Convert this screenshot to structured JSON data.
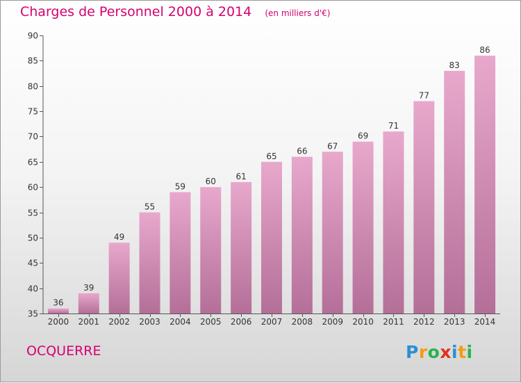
{
  "chart_data": {
    "type": "bar",
    "title": "Charges de Personnel 2000 à 2014",
    "subtitle": "(en milliers d'€)",
    "categories": [
      "2000",
      "2001",
      "2002",
      "2003",
      "2004",
      "2005",
      "2006",
      "2007",
      "2008",
      "2009",
      "2010",
      "2011",
      "2012",
      "2013",
      "2014"
    ],
    "values": [
      36,
      39,
      49,
      55,
      59,
      60,
      61,
      65,
      66,
      67,
      69,
      71,
      77,
      83,
      86
    ],
    "yticks": [
      35,
      40,
      45,
      50,
      55,
      60,
      65,
      70,
      75,
      80,
      85,
      90
    ],
    "ylim": [
      35,
      90
    ],
    "xlabel": "",
    "ylabel": "",
    "bar_color_top": "#e8a8cc",
    "bar_color_bottom": "#b46f98"
  },
  "commune": "OCQUERRE",
  "logo": {
    "letters": [
      "P",
      "r",
      "o",
      "x",
      "i",
      "t",
      "i"
    ],
    "colors": [
      "#2a8fd4",
      "#f39c12",
      "#2ab34a",
      "#e0301e",
      "#2a8fd4",
      "#f39c12",
      "#2ab34a"
    ]
  }
}
